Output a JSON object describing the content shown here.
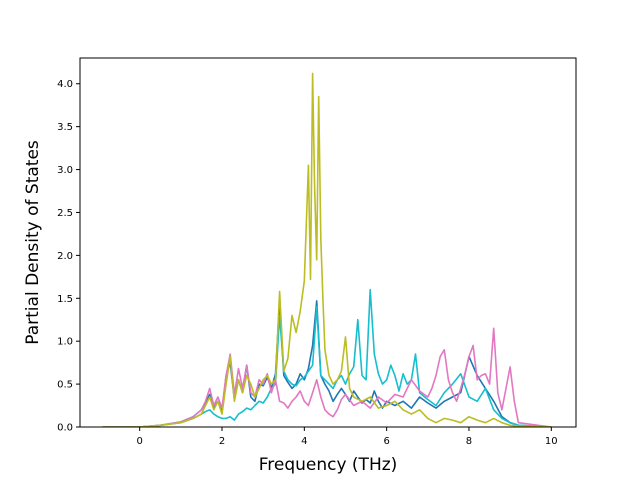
{
  "chart_data": {
    "type": "line",
    "title": "",
    "xlabel": "Frequency (THz)",
    "ylabel": "Partial Density of States",
    "xlim": [
      -1.45,
      10.6
    ],
    "ylim": [
      0,
      4.3
    ],
    "xticks": [
      0,
      2,
      4,
      6,
      8,
      10
    ],
    "yticks": [
      0.0,
      0.5,
      1.0,
      1.5,
      2.0,
      2.5,
      3.0,
      3.5,
      4.0
    ],
    "xtick_labels": [
      "0",
      "2",
      "4",
      "6",
      "8",
      "10"
    ],
    "ytick_labels": [
      "0.0",
      "0.5",
      "1.0",
      "1.5",
      "2.0",
      "2.5",
      "3.0",
      "3.5",
      "4.0"
    ],
    "grid": false,
    "legend": "none",
    "series": [
      {
        "color": "#1f77b4",
        "x": [
          -0.9,
          0.0,
          0.5,
          1.0,
          1.3,
          1.5,
          1.6,
          1.7,
          1.8,
          1.9,
          2.0,
          2.1,
          2.2,
          2.3,
          2.4,
          2.5,
          2.6,
          2.7,
          2.8,
          2.9,
          3.0,
          3.1,
          3.2,
          3.3,
          3.4,
          3.5,
          3.6,
          3.7,
          3.8,
          3.9,
          4.0,
          4.1,
          4.2,
          4.3,
          4.4,
          4.5,
          4.6,
          4.7,
          4.8,
          4.9,
          5.0,
          5.1,
          5.2,
          5.3,
          5.4,
          5.5,
          5.6,
          5.7,
          5.8,
          5.9,
          6.0,
          6.2,
          6.4,
          6.6,
          6.8,
          7.0,
          7.2,
          7.4,
          7.6,
          7.8,
          8.0,
          8.2,
          8.4,
          8.6,
          8.8,
          9.0,
          9.2,
          10.0
        ],
        "y": [
          0,
          0,
          0.02,
          0.06,
          0.12,
          0.2,
          0.28,
          0.38,
          0.22,
          0.3,
          0.18,
          0.6,
          0.75,
          0.32,
          0.55,
          0.4,
          0.72,
          0.35,
          0.3,
          0.5,
          0.48,
          0.58,
          0.45,
          0.62,
          1.45,
          0.6,
          0.52,
          0.45,
          0.5,
          0.62,
          0.55,
          0.68,
          0.95,
          1.47,
          0.6,
          0.5,
          0.42,
          0.3,
          0.38,
          0.45,
          0.38,
          0.3,
          0.42,
          0.35,
          0.28,
          0.32,
          0.28,
          0.42,
          0.3,
          0.22,
          0.3,
          0.25,
          0.3,
          0.22,
          0.35,
          0.28,
          0.22,
          0.3,
          0.35,
          0.4,
          0.82,
          0.6,
          0.45,
          0.3,
          0.12,
          0.05,
          0.02,
          0
        ]
      },
      {
        "color": "#17becf",
        "x": [
          -0.9,
          0.0,
          0.5,
          1.0,
          1.3,
          1.5,
          1.6,
          1.7,
          1.8,
          1.9,
          2.0,
          2.1,
          2.2,
          2.3,
          2.4,
          2.5,
          2.6,
          2.7,
          2.8,
          2.9,
          3.0,
          3.1,
          3.2,
          3.3,
          3.4,
          3.5,
          3.6,
          3.7,
          3.8,
          3.9,
          4.0,
          4.1,
          4.2,
          4.3,
          4.4,
          4.5,
          4.6,
          4.7,
          4.8,
          4.9,
          5.0,
          5.1,
          5.2,
          5.3,
          5.4,
          5.5,
          5.6,
          5.7,
          5.8,
          5.9,
          6.0,
          6.1,
          6.2,
          6.3,
          6.4,
          6.5,
          6.6,
          6.7,
          6.8,
          7.0,
          7.2,
          7.4,
          7.6,
          7.8,
          8.0,
          8.2,
          8.4,
          8.6,
          8.8,
          9.0,
          9.2,
          10.0
        ],
        "y": [
          0,
          0,
          0.02,
          0.05,
          0.1,
          0.15,
          0.18,
          0.2,
          0.15,
          0.12,
          0.1,
          0.1,
          0.12,
          0.08,
          0.15,
          0.18,
          0.22,
          0.2,
          0.25,
          0.3,
          0.28,
          0.35,
          0.45,
          0.5,
          1.3,
          0.65,
          0.55,
          0.5,
          0.48,
          0.55,
          0.58,
          0.65,
          0.72,
          1.4,
          0.6,
          0.55,
          0.5,
          0.45,
          0.55,
          0.6,
          0.5,
          0.62,
          0.7,
          1.25,
          0.6,
          0.55,
          1.6,
          0.85,
          0.62,
          0.5,
          0.55,
          0.72,
          0.6,
          0.42,
          0.62,
          0.5,
          0.55,
          0.85,
          0.4,
          0.32,
          0.25,
          0.4,
          0.5,
          0.62,
          0.35,
          0.3,
          0.45,
          0.2,
          0.1,
          0.05,
          0.02,
          0
        ]
      },
      {
        "color": "#e377c2",
        "x": [
          -0.9,
          0.0,
          0.5,
          1.0,
          1.3,
          1.5,
          1.6,
          1.7,
          1.8,
          1.9,
          2.0,
          2.1,
          2.2,
          2.3,
          2.4,
          2.5,
          2.6,
          2.7,
          2.8,
          2.9,
          3.0,
          3.1,
          3.2,
          3.3,
          3.4,
          3.5,
          3.6,
          3.7,
          3.8,
          3.9,
          4.0,
          4.1,
          4.2,
          4.3,
          4.4,
          4.5,
          4.6,
          4.7,
          4.8,
          4.9,
          5.0,
          5.2,
          5.4,
          5.6,
          5.8,
          6.0,
          6.2,
          6.4,
          6.6,
          6.8,
          7.0,
          7.1,
          7.2,
          7.3,
          7.4,
          7.5,
          7.6,
          7.7,
          7.8,
          7.9,
          8.0,
          8.1,
          8.2,
          8.3,
          8.4,
          8.5,
          8.6,
          8.7,
          8.8,
          8.9,
          9.0,
          9.1,
          9.2,
          10.0
        ],
        "y": [
          0,
          0,
          0.02,
          0.06,
          0.12,
          0.2,
          0.3,
          0.45,
          0.25,
          0.35,
          0.22,
          0.6,
          0.85,
          0.38,
          0.68,
          0.45,
          0.72,
          0.4,
          0.35,
          0.55,
          0.5,
          0.62,
          0.4,
          0.55,
          0.3,
          0.28,
          0.22,
          0.3,
          0.35,
          0.42,
          0.3,
          0.25,
          0.4,
          0.55,
          0.35,
          0.2,
          0.15,
          0.12,
          0.2,
          0.32,
          0.38,
          0.25,
          0.3,
          0.22,
          0.35,
          0.28,
          0.38,
          0.35,
          0.55,
          0.42,
          0.35,
          0.45,
          0.6,
          0.82,
          0.9,
          0.55,
          0.4,
          0.3,
          0.45,
          0.62,
          0.82,
          0.95,
          0.55,
          0.6,
          0.62,
          0.5,
          1.15,
          0.4,
          0.2,
          0.45,
          0.7,
          0.3,
          0.05,
          0
        ]
      },
      {
        "color": "#bcbd22",
        "x": [
          -0.9,
          0.0,
          0.5,
          1.0,
          1.3,
          1.5,
          1.6,
          1.7,
          1.8,
          1.9,
          2.0,
          2.1,
          2.2,
          2.3,
          2.4,
          2.5,
          2.6,
          2.7,
          2.8,
          2.9,
          3.0,
          3.1,
          3.2,
          3.3,
          3.4,
          3.5,
          3.6,
          3.7,
          3.8,
          3.9,
          4.0,
          4.1,
          4.15,
          4.2,
          4.25,
          4.3,
          4.35,
          4.4,
          4.45,
          4.5,
          4.6,
          4.7,
          4.8,
          4.9,
          5.0,
          5.1,
          5.2,
          5.4,
          5.6,
          5.8,
          6.0,
          6.2,
          6.4,
          6.6,
          6.8,
          7.0,
          7.2,
          7.4,
          7.6,
          7.8,
          8.0,
          8.2,
          8.4,
          8.6,
          8.8,
          9.0,
          9.2,
          10.0
        ],
        "y": [
          0,
          0,
          0.02,
          0.05,
          0.1,
          0.15,
          0.25,
          0.35,
          0.2,
          0.3,
          0.15,
          0.5,
          0.82,
          0.3,
          0.55,
          0.4,
          0.6,
          0.5,
          0.35,
          0.45,
          0.55,
          0.6,
          0.5,
          0.55,
          1.58,
          0.65,
          0.8,
          1.3,
          1.1,
          1.35,
          1.7,
          3.05,
          1.72,
          4.12,
          2.8,
          1.95,
          3.85,
          2.2,
          1.5,
          0.9,
          0.6,
          0.5,
          0.55,
          0.65,
          1.05,
          0.45,
          0.35,
          0.3,
          0.35,
          0.22,
          0.25,
          0.3,
          0.2,
          0.15,
          0.2,
          0.1,
          0.05,
          0.1,
          0.08,
          0.05,
          0.12,
          0.08,
          0.05,
          0.1,
          0.05,
          0.02,
          0.01,
          0
        ]
      }
    ]
  }
}
